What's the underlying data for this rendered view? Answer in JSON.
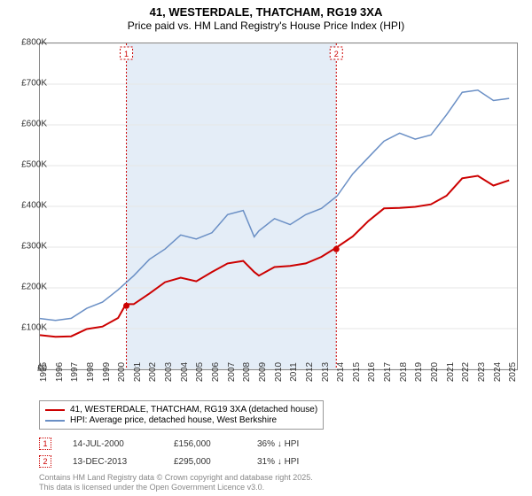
{
  "title": {
    "line1": "41, WESTERDALE, THATCHAM, RG19 3XA",
    "line2": "Price paid vs. HM Land Registry's House Price Index (HPI)"
  },
  "chart": {
    "type": "line",
    "background_color": "#ffffff",
    "plot_border_color": "#888888",
    "grid_color": "#e6e6e6",
    "highlight_band_color": "#e4edf7",
    "x": {
      "min": 1995,
      "max": 2025.5,
      "tick_step": 1,
      "labels": [
        "1995",
        "1996",
        "1997",
        "1998",
        "1999",
        "2000",
        "2001",
        "2002",
        "2003",
        "2004",
        "2005",
        "2006",
        "2007",
        "2008",
        "2009",
        "2010",
        "2011",
        "2012",
        "2013",
        "2014",
        "2015",
        "2016",
        "2017",
        "2018",
        "2019",
        "2020",
        "2021",
        "2022",
        "2023",
        "2024",
        "2025"
      ]
    },
    "y": {
      "min": 0,
      "max": 800000,
      "tick_step": 100000,
      "labels": [
        "£0",
        "£100K",
        "£200K",
        "£300K",
        "£400K",
        "£500K",
        "£600K",
        "£700K",
        "£800K"
      ]
    },
    "series": [
      {
        "name": "price_paid",
        "label": "41, WESTERDALE, THATCHAM, RG19 3XA (detached house)",
        "color": "#cc0000",
        "width": 2,
        "points": [
          [
            1995,
            80000
          ],
          [
            1996,
            80000
          ],
          [
            1997,
            85000
          ],
          [
            1998,
            95000
          ],
          [
            1999,
            105000
          ],
          [
            2000,
            130000
          ],
          [
            2000.5,
            156000
          ],
          [
            2001,
            160000
          ],
          [
            2002,
            190000
          ],
          [
            2003,
            210000
          ],
          [
            2004,
            225000
          ],
          [
            2005,
            220000
          ],
          [
            2006,
            235000
          ],
          [
            2007,
            260000
          ],
          [
            2008,
            270000
          ],
          [
            2008.7,
            235000
          ],
          [
            2009,
            230000
          ],
          [
            2010,
            255000
          ],
          [
            2011,
            250000
          ],
          [
            2012,
            260000
          ],
          [
            2013,
            280000
          ],
          [
            2013.95,
            295000
          ],
          [
            2014,
            300000
          ],
          [
            2015,
            330000
          ],
          [
            2016,
            360000
          ],
          [
            2017,
            395000
          ],
          [
            2018,
            400000
          ],
          [
            2019,
            395000
          ],
          [
            2020,
            405000
          ],
          [
            2021,
            430000
          ],
          [
            2022,
            465000
          ],
          [
            2023,
            475000
          ],
          [
            2024,
            455000
          ],
          [
            2025,
            460000
          ]
        ]
      },
      {
        "name": "hpi",
        "label": "HPI: Average price, detached house, West Berkshire",
        "color": "#6a8fc5",
        "width": 1.5,
        "points": [
          [
            1995,
            120000
          ],
          [
            1996,
            120000
          ],
          [
            1997,
            130000
          ],
          [
            1998,
            145000
          ],
          [
            1999,
            165000
          ],
          [
            2000,
            200000
          ],
          [
            2001,
            225000
          ],
          [
            2002,
            270000
          ],
          [
            2003,
            300000
          ],
          [
            2004,
            325000
          ],
          [
            2005,
            320000
          ],
          [
            2006,
            340000
          ],
          [
            2007,
            375000
          ],
          [
            2008,
            390000
          ],
          [
            2008.7,
            330000
          ],
          [
            2009,
            335000
          ],
          [
            2010,
            370000
          ],
          [
            2011,
            360000
          ],
          [
            2012,
            375000
          ],
          [
            2013,
            395000
          ],
          [
            2014,
            430000
          ],
          [
            2015,
            475000
          ],
          [
            2016,
            520000
          ],
          [
            2017,
            565000
          ],
          [
            2018,
            575000
          ],
          [
            2019,
            565000
          ],
          [
            2020,
            580000
          ],
          [
            2021,
            620000
          ],
          [
            2022,
            680000
          ],
          [
            2023,
            690000
          ],
          [
            2024,
            655000
          ],
          [
            2025,
            665000
          ]
        ]
      }
    ],
    "markers": [
      {
        "id": "1",
        "x": 2000.53,
        "date": "14-JUL-2000",
        "price": "£156,000",
        "delta": "36% ↓ HPI",
        "y": 156000
      },
      {
        "id": "2",
        "x": 2013.95,
        "date": "13-DEC-2013",
        "price": "£295,000",
        "delta": "31% ↓ HPI",
        "y": 295000
      }
    ]
  },
  "legend": {
    "row1": "41, WESTERDALE, THATCHAM, RG19 3XA (detached house)",
    "row2": "HPI: Average price, detached house, West Berkshire"
  },
  "footer": {
    "line1": "Contains HM Land Registry data © Crown copyright and database right 2025.",
    "line2": "This data is licensed under the Open Government Licence v3.0."
  }
}
